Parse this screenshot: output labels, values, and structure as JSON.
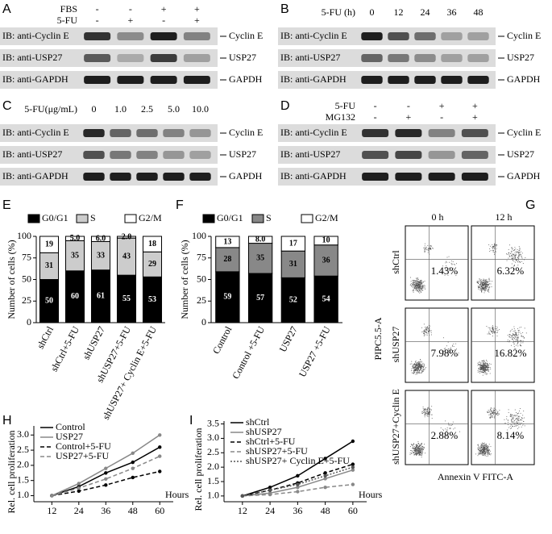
{
  "blots": [
    {
      "label": "A",
      "conditions": [
        {
          "name": "FBS",
          "values": [
            "-",
            "-",
            "+",
            "+"
          ]
        },
        {
          "name": "5-FU",
          "values": [
            "-",
            "+",
            "-",
            "+"
          ]
        }
      ],
      "rows": [
        {
          "antibody": "IB: anti-Cyclin E",
          "protein": "Cyclin E"
        },
        {
          "antibody": "IB: anti-USP27",
          "protein": "USP27"
        },
        {
          "antibody": "IB: anti-GAPDH",
          "protein": "GAPDH"
        }
      ]
    },
    {
      "label": "B",
      "conditions": [
        {
          "name": "5-FU (h)",
          "values": [
            "0",
            "12",
            "24",
            "36",
            "48"
          ]
        }
      ],
      "rows": [
        {
          "antibody": "IB: anti-Cyclin E",
          "protein": "Cyclin E"
        },
        {
          "antibody": "IB: anti-USP27",
          "protein": "USP27"
        },
        {
          "antibody": "IB: anti-GAPDH",
          "protein": "GAPDH"
        }
      ]
    },
    {
      "label": "C",
      "conditions": [
        {
          "name": "5-FU(μg/mL)",
          "values": [
            "0",
            "1.0",
            "2.5",
            "5.0",
            "10.0"
          ]
        }
      ],
      "rows": [
        {
          "antibody": "IB: anti-Cyclin E",
          "protein": "Cyclin E"
        },
        {
          "antibody": "IB: anti-USP27",
          "protein": "USP27"
        },
        {
          "antibody": "IB: anti-GAPDH",
          "protein": "GAPDH"
        }
      ]
    },
    {
      "label": "D",
      "conditions": [
        {
          "name": "5-FU",
          "values": [
            "-",
            "-",
            "+",
            "+"
          ]
        },
        {
          "name": "MG132",
          "values": [
            "-",
            "+",
            "-",
            "+"
          ]
        }
      ],
      "rows": [
        {
          "antibody": "IB: anti-Cyclin E",
          "protein": "Cyclin E"
        },
        {
          "antibody": "IB: anti-USP27",
          "protein": "USP27"
        },
        {
          "antibody": "IB: anti-GAPDH",
          "protein": "GAPDH"
        }
      ]
    }
  ],
  "chart_data": [
    {
      "type": "bar",
      "label": "E",
      "stacked": true,
      "y_label": "Number of cells (%)",
      "categories": [
        "shCtrl",
        "shCtrl+5-FU",
        "shUSP27",
        "shUSP27+5-FU",
        "shUSP27+ Cyclin E+5-FU"
      ],
      "series": [
        {
          "name": "G0/G1",
          "color": "#000000",
          "values": [
            50,
            60,
            61,
            55,
            53
          ]
        },
        {
          "name": "S",
          "color": "#cccccc",
          "values": [
            31,
            35,
            33,
            43,
            29
          ]
        },
        {
          "name": "G2/M",
          "color": "#ffffff",
          "values": [
            19,
            5,
            6,
            2,
            18
          ],
          "value_labels": [
            "19",
            "5.0",
            "6.0",
            "2.0",
            "18"
          ]
        }
      ],
      "ylim": [
        0,
        100
      ],
      "yticks": [
        0,
        25,
        50,
        75,
        100
      ]
    },
    {
      "type": "bar",
      "label": "F",
      "stacked": true,
      "y_label": "Number of cells (%)",
      "categories": [
        "Control",
        "Control +5-FU",
        "USP27",
        "USP27 +5-FU"
      ],
      "series": [
        {
          "name": "G0/G1",
          "color": "#000000",
          "values": [
            59,
            57,
            52,
            54
          ]
        },
        {
          "name": "S",
          "color": "#888888",
          "values": [
            28,
            35,
            31,
            36
          ]
        },
        {
          "name": "G2/M",
          "color": "#ffffff",
          "values": [
            13,
            8,
            17,
            10
          ],
          "value_labels": [
            "13",
            "8.0",
            "17",
            "10"
          ]
        }
      ],
      "ylim": [
        0,
        100
      ],
      "yticks": [
        0,
        25,
        50,
        75,
        100
      ]
    },
    {
      "type": "line",
      "label": "H",
      "x_label": "Hours",
      "y_label": "Rel. cell proliferation",
      "x": [
        12,
        24,
        36,
        48,
        60
      ],
      "series": [
        {
          "name": "Control",
          "color": "#000000",
          "dash": "solid",
          "values": [
            1.0,
            1.3,
            1.75,
            2.1,
            2.6
          ]
        },
        {
          "name": "USP27",
          "color": "#888888",
          "dash": "solid",
          "values": [
            1.0,
            1.4,
            1.9,
            2.4,
            3.0
          ]
        },
        {
          "name": "Control+5-FU",
          "color": "#000000",
          "dash": "dashed",
          "values": [
            1.0,
            1.15,
            1.35,
            1.6,
            1.8
          ]
        },
        {
          "name": "USP27+5-FU",
          "color": "#888888",
          "dash": "dashed",
          "values": [
            1.0,
            1.25,
            1.55,
            1.9,
            2.3
          ]
        }
      ],
      "xlim": [
        4,
        66
      ],
      "xticks": [
        12,
        24,
        36,
        48,
        60
      ],
      "ylim": [
        0.8,
        3.3
      ],
      "yticks": [
        {
          "value": 1,
          "label": "1.0"
        },
        {
          "value": 1.5,
          "label": "1.5"
        },
        {
          "value": 2,
          "label": "2.0"
        },
        {
          "value": 2.5,
          "label": "2.5"
        },
        {
          "value": 3,
          "label": "3.0"
        }
      ]
    },
    {
      "type": "line",
      "label": "I",
      "x_label": "Hours",
      "y_label": "Rel. cell proliferation",
      "x": [
        12,
        24,
        36,
        48,
        60
      ],
      "series": [
        {
          "name": "shCtrl",
          "color": "#000000",
          "dash": "solid",
          "values": [
            1.0,
            1.3,
            1.7,
            2.3,
            2.9
          ]
        },
        {
          "name": "shUSP27",
          "color": "#888888",
          "dash": "solid",
          "values": [
            1.0,
            1.1,
            1.3,
            1.6,
            1.9
          ]
        },
        {
          "name": "shCtrl+5-FU",
          "color": "#000000",
          "dash": "dashed",
          "values": [
            1.0,
            1.2,
            1.45,
            1.8,
            2.1
          ]
        },
        {
          "name": "shUSP27+5-FU",
          "color": "#888888",
          "dash": "dashed",
          "values": [
            1.0,
            1.05,
            1.15,
            1.3,
            1.4
          ]
        },
        {
          "name": "shUSP27+ Cyclin E+5-FU",
          "color": "#555555",
          "dash": "dotted",
          "values": [
            1.0,
            1.2,
            1.4,
            1.7,
            2.0
          ]
        }
      ],
      "xlim": [
        4,
        66
      ],
      "xticks": [
        12,
        24,
        36,
        48,
        60
      ],
      "ylim": [
        0.8,
        3.6
      ],
      "yticks": [
        {
          "value": 1,
          "label": "1.0"
        },
        {
          "value": 1.5,
          "label": "1.5"
        },
        {
          "value": 2,
          "label": "2.0"
        },
        {
          "value": 2.5,
          "label": "2.5"
        },
        {
          "value": 3,
          "label": "3.0"
        },
        {
          "value": 3.5,
          "label": "3.5"
        }
      ]
    }
  ],
  "flow": {
    "label": "G",
    "columns": [
      "0 h",
      "12 h"
    ],
    "rows": [
      "shCtrl",
      "shUSP27",
      "shUSP27+Cyclin E"
    ],
    "percentages": [
      [
        "1.43%",
        "6.32%"
      ],
      [
        "7.98%",
        "16.82%"
      ],
      [
        "2.88%",
        "8.14%"
      ]
    ],
    "x_label": "Annexin V FITC-A",
    "y_label": "PIPC5.5-A"
  }
}
